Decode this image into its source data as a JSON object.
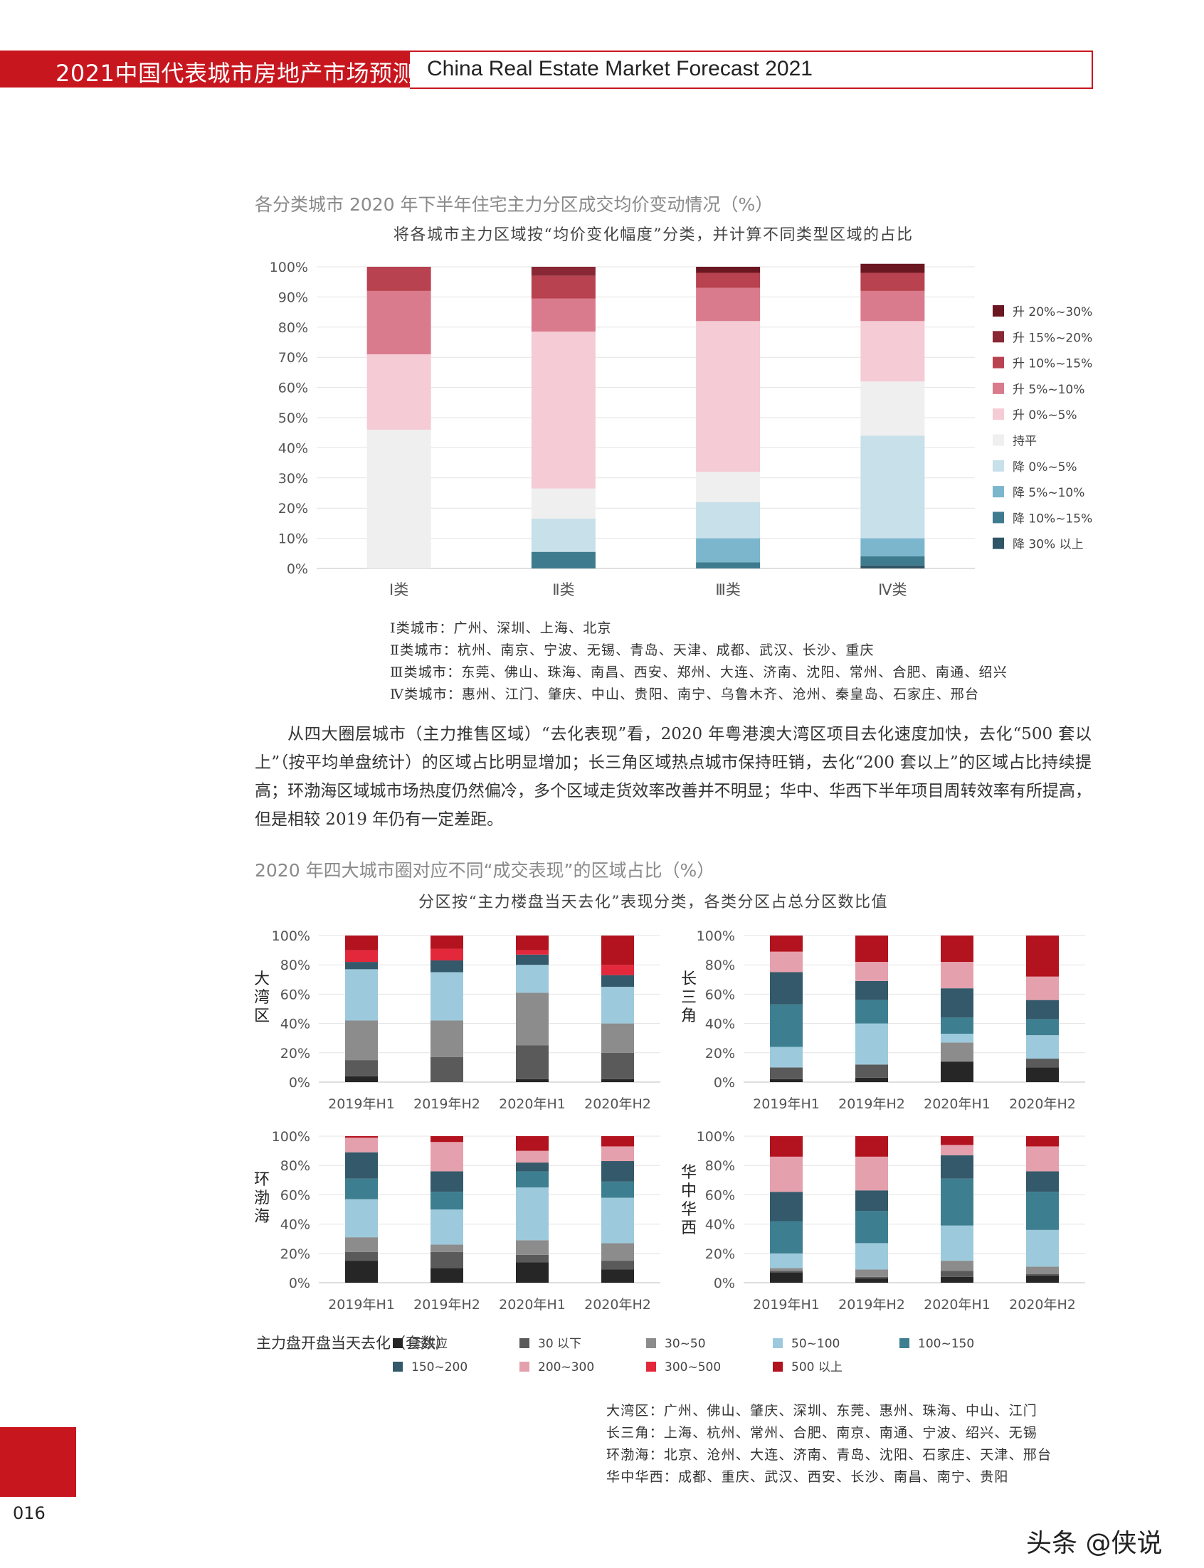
{
  "header": {
    "title_cn": "2021中国代表城市房地产市场预测",
    "title_en": "China Real Estate Market Forecast 2021"
  },
  "chart1": {
    "title": "各分类城市 2020 年下半年住宅主力分区成交均价变动情况（%）",
    "subtitle": "将各城市主力区域按“均价变化幅度”分类，并计算不同类型区域的占比",
    "notes": [
      "Ⅰ类城市：广州、深圳、上海、北京",
      "Ⅱ类城市：杭州、南京、宁波、无锡、青岛、天津、成都、武汉、长沙、重庆",
      "Ⅲ类城市：东莞、佛山、珠海、南昌、西安、郑州、大连、济南、沈阳、常州、合肥、南通、绍兴",
      "Ⅳ类城市：惠州、江门、肇庆、中山、贵阳、南宁、乌鲁木齐、沧州、秦皇岛、石家庄、邢台"
    ]
  },
  "paragraph": "从四大圈层城市（主力推售区域）“去化表现”看，2020 年粤港澳大湾区项目去化速度加快，去化“500 套以上”（按平均单盘统计）的区域占比明显增加；长三角区域热点城市保持旺销，去化“200 套以上”的区域占比持续提高；环渤海区域城市场热度仍然偏冷，多个区域走货效率改善并不明显；华中、华西下半年项目周转效率有所提高，但是相较 2019 年仍有一定差距。",
  "chart2": {
    "title": "2020 年四大城市圈对应不同“成交表现”的区域占比（%）",
    "subtitle": "分区按“主力楼盘当天去化”表现分类，各类分区占总分区数比值",
    "legend_title": "主力盘开盘当天去化（套数）",
    "notes": [
      "大湾区：广州、佛山、肇庆、深圳、东莞、惠州、珠海、中山、江门",
      "长三角：上海、杭州、常州、合肥、南京、南通、宁波、绍兴、无锡",
      "环渤海：北京、沧州、大连、济南、青岛、沈阳、石家庄、天津、邢台",
      "华中华西：成都、重庆、武汉、西安、长沙、南昌、南宁、贵阳"
    ]
  },
  "chart_data": [
    {
      "type": "bar",
      "stacked": true,
      "categories": [
        "Ⅰ类",
        "Ⅱ类",
        "Ⅲ类",
        "Ⅳ类"
      ],
      "yticks": [
        "0%",
        "10%",
        "20%",
        "30%",
        "40%",
        "50%",
        "60%",
        "70%",
        "80%",
        "90%",
        "100%"
      ],
      "ylim": [
        0,
        100
      ],
      "grid": true,
      "legend_position": "right",
      "series": [
        {
          "name": "降 30% 以上",
          "color": "#2f5566",
          "values": [
            0,
            0,
            0,
            1
          ]
        },
        {
          "name": "降 10%~15%",
          "color": "#3e7b8e",
          "values": [
            0,
            5.5,
            2,
            3
          ]
        },
        {
          "name": "降 5%~10%",
          "color": "#7bb6cd",
          "values": [
            0,
            0,
            8,
            6
          ]
        },
        {
          "name": "降 0%~5%",
          "color": "#c7e0ea",
          "values": [
            0,
            11,
            12,
            34
          ]
        },
        {
          "name": "持平",
          "color": "#efefef",
          "values": [
            46,
            10,
            10,
            18
          ]
        },
        {
          "name": "升 0%~5%",
          "color": "#f5cbd5",
          "values": [
            25,
            52,
            50,
            20
          ]
        },
        {
          "name": "升 5%~10%",
          "color": "#d97b8d",
          "values": [
            21,
            11,
            11,
            10
          ]
        },
        {
          "name": "升 10%~15%",
          "color": "#b8424f",
          "values": [
            8,
            7.5,
            5,
            6
          ]
        },
        {
          "name": "升 15%~20%",
          "color": "#8a2735",
          "values": [
            0,
            3,
            0,
            0
          ]
        },
        {
          "name": "升 20%~30%",
          "color": "#6b1722",
          "values": [
            0,
            0,
            2,
            3
          ]
        }
      ],
      "legend_order": [
        "升 20%~30%",
        "升 15%~20%",
        "升 10%~15%",
        "升 5%~10%",
        "升 0%~5%",
        "持平",
        "降 0%~5%",
        "降 5%~10%",
        "降 10%~15%",
        "降 30% 以上"
      ]
    },
    {
      "type": "bar",
      "stacked": true,
      "categories": [
        "2019年H1",
        "2019年H2",
        "2020年H1",
        "2020年H2"
      ],
      "yticks": [
        "0%",
        "20%",
        "40%",
        "60%",
        "80%",
        "100%"
      ],
      "ylim": [
        0,
        100
      ],
      "grid": true,
      "legend_position": "bottom",
      "series_legend": [
        {
          "name": "无供应",
          "color": "#262626"
        },
        {
          "name": "30 以下",
          "color": "#5a5a5a"
        },
        {
          "name": "30~50",
          "color": "#8c8c8c"
        },
        {
          "name": "50~100",
          "color": "#9ccadc"
        },
        {
          "name": "100~150",
          "color": "#3d7f90"
        },
        {
          "name": "150~200",
          "color": "#33596a"
        },
        {
          "name": "200~300",
          "color": "#e4a0ac"
        },
        {
          "name": "300~500",
          "color": "#e3283c"
        },
        {
          "name": "500 以上",
          "color": "#b3121f"
        }
      ],
      "panels": [
        {
          "region": "大湾区",
          "values": [
            [
              4,
              11,
              27,
              35,
              0,
              5,
              0,
              8,
              10
            ],
            [
              0,
              17,
              25,
              33,
              0,
              8,
              0,
              8,
              9
            ],
            [
              2,
              23,
              36,
              19,
              0,
              7,
              0,
              3,
              10
            ],
            [
              2,
              18,
              20,
              25,
              0,
              8,
              0,
              7,
              20
            ]
          ]
        },
        {
          "region": "长三角",
          "values": [
            [
              2,
              8,
              0,
              14,
              29,
              22,
              14,
              0,
              11
            ],
            [
              3,
              9,
              0,
              28,
              16,
              13,
              13,
              0,
              18
            ],
            [
              14,
              0,
              13,
              6,
              11,
              20,
              18,
              0,
              18
            ],
            [
              10,
              6,
              0,
              16,
              11,
              13,
              16,
              0,
              28
            ]
          ]
        },
        {
          "region": "环渤海",
          "values": [
            [
              15,
              6,
              10,
              26,
              14,
              18,
              10,
              0,
              1
            ],
            [
              10,
              11,
              5,
              24,
              12,
              14,
              20,
              0,
              4
            ],
            [
              14,
              5,
              10,
              36,
              11,
              6,
              8,
              0,
              10
            ],
            [
              9,
              6,
              12,
              31,
              11,
              14,
              10,
              0,
              7
            ]
          ]
        },
        {
          "region": "华中华西",
          "values": [
            [
              7,
              1,
              2,
              10,
              22,
              20,
              24,
              0,
              14
            ],
            [
              3,
              1,
              5,
              18,
              22,
              14,
              23,
              0,
              14
            ],
            [
              4,
              4,
              7,
              24,
              32,
              16,
              7,
              0,
              6
            ],
            [
              5,
              1,
              5,
              25,
              26,
              14,
              17,
              0,
              7
            ]
          ]
        }
      ]
    }
  ],
  "footer": {
    "page_number": "016",
    "watermark": "头条 @侠说"
  }
}
